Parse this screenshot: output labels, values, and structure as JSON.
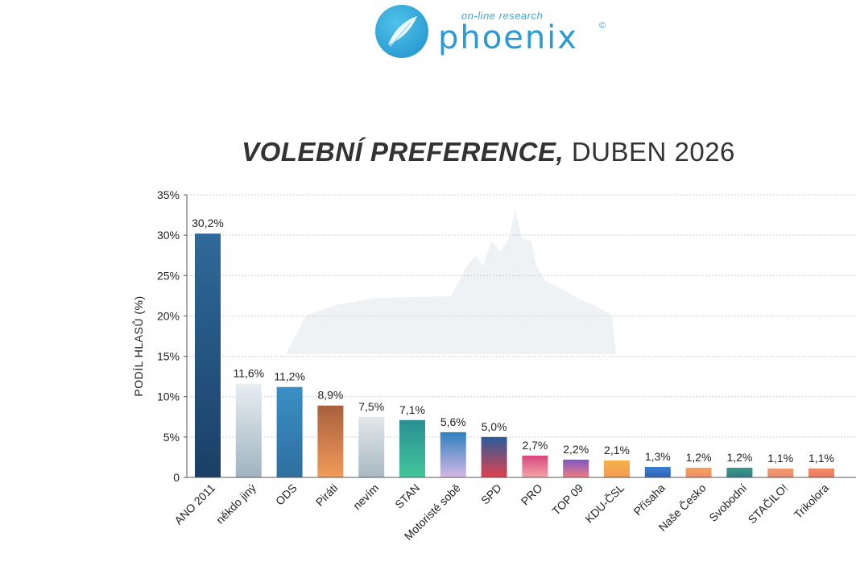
{
  "logo": {
    "tagline": "on-line research",
    "name": "phoenix",
    "copyright": "©"
  },
  "chart_data": {
    "type": "bar",
    "title_bold": "VOLEBNÍ PREFERENCE,",
    "title_rest": "DUBEN 2026",
    "ylabel": "PODÍL HLASŮ (%)",
    "ylim": [
      0,
      35
    ],
    "yticks": [
      "0",
      "5%",
      "10%",
      "15%",
      "20%",
      "25%",
      "30%",
      "35%"
    ],
    "grid": true,
    "categories": [
      "ANO 2011",
      "někdo jiný",
      "ODS",
      "Piráti",
      "nevím",
      "STAN",
      "Motoristé sobě",
      "SPD",
      "PRO",
      "TOP 09",
      "KDU-ČSL",
      "Přísaha",
      "Naše Česko",
      "Svobodní",
      "STAČILO!",
      "Trikolora"
    ],
    "values": [
      30.2,
      11.6,
      11.2,
      8.9,
      7.5,
      7.1,
      5.6,
      5.0,
      2.7,
      2.2,
      2.1,
      1.3,
      1.2,
      1.2,
      1.1,
      1.1
    ],
    "value_labels": [
      "30,2%",
      "11,6%",
      "11,2%",
      "8,9%",
      "7,5%",
      "7,1%",
      "5,6%",
      "5,0%",
      "2,7%",
      "2,2%",
      "2,1%",
      "1,3%",
      "1,2%",
      "1,2%",
      "1,1%",
      "1,1%"
    ],
    "colors": [
      [
        "#2f6a9a",
        "#1a3f66"
      ],
      [
        "#e8eef2",
        "#9fb3bf"
      ],
      [
        "#3a8fc4",
        "#2f6f9e"
      ],
      [
        "#a9603d",
        "#f29a5a"
      ],
      [
        "#e3e8ec",
        "#a8b8c2"
      ],
      [
        "#2a8f94",
        "#41c79a"
      ],
      [
        "#2d7fc0",
        "#d6b8e6"
      ],
      [
        "#2c5c9c",
        "#e0424c"
      ],
      [
        "#d8477f",
        "#f5a3a9"
      ],
      [
        "#7b59c7",
        "#f07b80"
      ],
      [
        "#f6b24a",
        "#f59a52"
      ],
      [
        "#3b7fd0",
        "#2c63b8"
      ],
      [
        "#f2a35a",
        "#f28b6b"
      ],
      [
        "#3c9a8c",
        "#2f7c86"
      ],
      [
        "#f19a70",
        "#ef8a68"
      ],
      [
        "#f08a66",
        "#ee7a5e"
      ]
    ]
  }
}
